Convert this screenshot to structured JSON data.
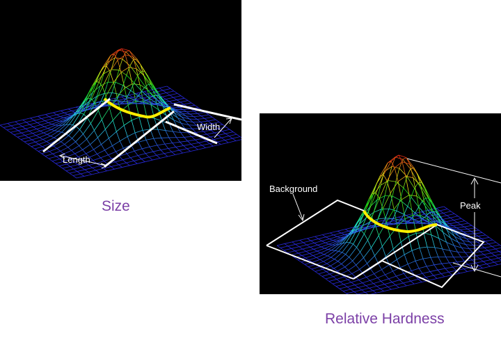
{
  "figures": [
    {
      "caption": "Size",
      "labels": {
        "length": "Length",
        "width": "Width"
      }
    },
    {
      "caption": "Relative Hardness",
      "labels": {
        "background": "Background",
        "peak": "Peak"
      }
    }
  ],
  "colors": {
    "caption": "#7b3fa6",
    "panel_bg": "#000000",
    "contour": "#ffee00",
    "annotation": "#ffffff"
  }
}
